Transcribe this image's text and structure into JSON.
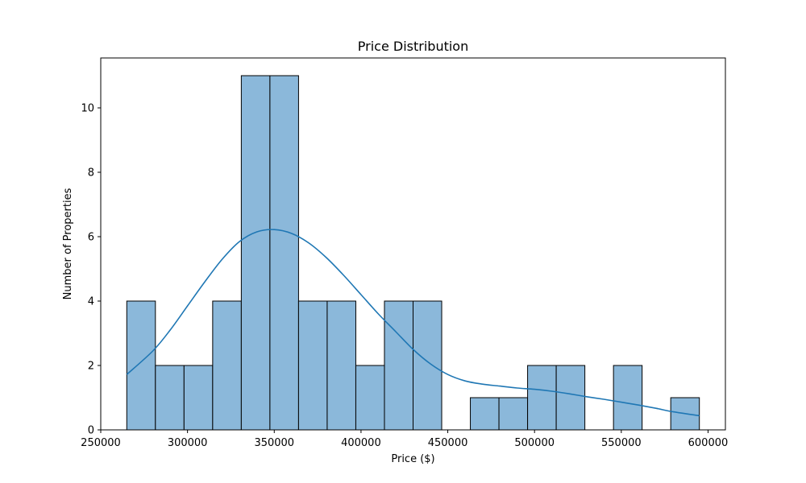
{
  "chart_data": {
    "type": "bar",
    "subtype": "histogram-with-kde",
    "title": "Price Distribution",
    "xlabel": "Price ($)",
    "ylabel": "Number of Properties",
    "xlim": [
      250000,
      610000
    ],
    "ylim": [
      0,
      11.55
    ],
    "x_ticks": [
      250000,
      300000,
      350000,
      400000,
      450000,
      500000,
      550000,
      600000
    ],
    "y_ticks": [
      0,
      2,
      4,
      6,
      8,
      10
    ],
    "bins": [
      {
        "start": 265000,
        "end": 281500,
        "count": 4
      },
      {
        "start": 281500,
        "end": 298000,
        "count": 2
      },
      {
        "start": 298000,
        "end": 314500,
        "count": 2
      },
      {
        "start": 314500,
        "end": 331000,
        "count": 4
      },
      {
        "start": 331000,
        "end": 347500,
        "count": 11
      },
      {
        "start": 347500,
        "end": 364000,
        "count": 11
      },
      {
        "start": 364000,
        "end": 380500,
        "count": 4
      },
      {
        "start": 380500,
        "end": 397000,
        "count": 4
      },
      {
        "start": 397000,
        "end": 413500,
        "count": 2
      },
      {
        "start": 413500,
        "end": 430000,
        "count": 4
      },
      {
        "start": 430000,
        "end": 446500,
        "count": 4
      },
      {
        "start": 446500,
        "end": 463000,
        "count": 0
      },
      {
        "start": 463000,
        "end": 479500,
        "count": 1
      },
      {
        "start": 479500,
        "end": 496000,
        "count": 1
      },
      {
        "start": 496000,
        "end": 512500,
        "count": 2
      },
      {
        "start": 512500,
        "end": 529000,
        "count": 2
      },
      {
        "start": 529000,
        "end": 545500,
        "count": 0
      },
      {
        "start": 545500,
        "end": 562000,
        "count": 2
      },
      {
        "start": 562000,
        "end": 578500,
        "count": 0
      },
      {
        "start": 578500,
        "end": 595000,
        "count": 1
      }
    ],
    "kde": {
      "x": [
        265000,
        280000,
        290000,
        300000,
        310000,
        320000,
        330000,
        340000,
        350000,
        360000,
        370000,
        380000,
        390000,
        400000,
        410000,
        420000,
        430000,
        440000,
        450000,
        460000,
        470000,
        480000,
        490000,
        500000,
        510000,
        520000,
        530000,
        540000,
        550000,
        560000,
        570000,
        580000,
        595000
      ],
      "y": [
        1.72,
        2.45,
        3.1,
        3.85,
        4.6,
        5.3,
        5.85,
        6.15,
        6.22,
        6.1,
        5.8,
        5.35,
        4.8,
        4.2,
        3.6,
        3.05,
        2.5,
        2.05,
        1.72,
        1.52,
        1.42,
        1.36,
        1.3,
        1.26,
        1.2,
        1.12,
        1.03,
        0.95,
        0.86,
        0.77,
        0.67,
        0.56,
        0.44
      ]
    },
    "grid": false,
    "legend": "none",
    "colors": {
      "bar_fill": "#8bb8da",
      "bar_edge": "#000000",
      "kde_line": "#1f77b4"
    }
  }
}
